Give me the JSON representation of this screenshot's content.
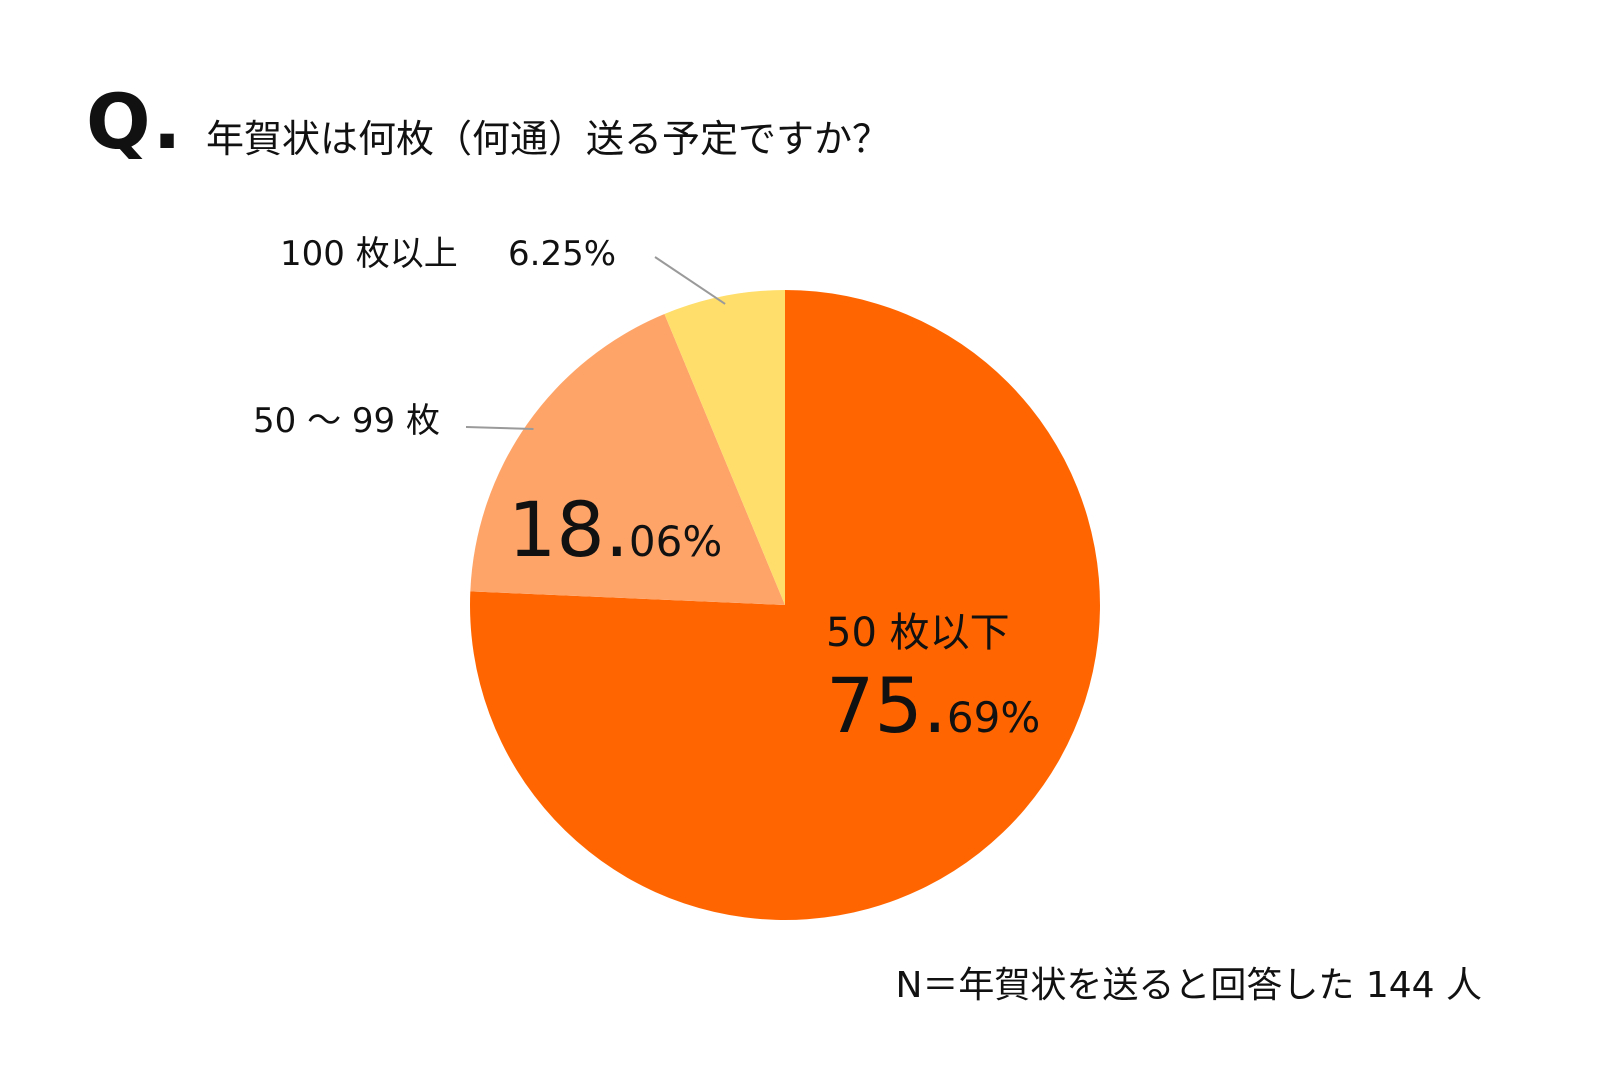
{
  "header": {
    "q_mark": "Q.",
    "question": "年賀状は何枚（何通）送る予定ですか？"
  },
  "chart_data": {
    "type": "pie",
    "title": "年賀状は何枚（何通）送る予定ですか？",
    "slices": [
      {
        "label": "50 枚以下",
        "value": 75.69,
        "int_part": "75.",
        "dec_part": "69%",
        "color": "#FF6602"
      },
      {
        "label": "50 ～ 99 枚",
        "value": 18.06,
        "int_part": "18.",
        "dec_part": "06%",
        "color": "#FFA468"
      },
      {
        "label": "100 枚以上",
        "value": 6.25,
        "value_text": "6.25%",
        "color": "#FFDE6B"
      }
    ],
    "start": "12 o'clock",
    "direction": "clockwise"
  },
  "footnote": "N＝年賀状を送ると回答した 144 人"
}
